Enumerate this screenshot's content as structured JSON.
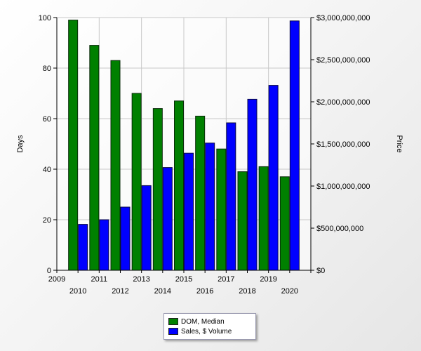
{
  "chart_data": {
    "type": "bar",
    "x_axis": {
      "ticks_upper": [
        "2009",
        "2011",
        "2013",
        "2015",
        "2017",
        "2019"
      ],
      "ticks_lower": [
        "2010",
        "2012",
        "2014",
        "2016",
        "2018",
        "2020"
      ]
    },
    "categories": [
      "2010",
      "2011",
      "2012",
      "2013",
      "2014",
      "2015",
      "2016",
      "2017",
      "2018",
      "2019",
      "2020"
    ],
    "ylabel_left": "Days",
    "ylabel_right": "Price",
    "ylim_left": [
      0,
      100
    ],
    "ylim_right": [
      0,
      3000000000
    ],
    "yticks_left": [
      "0",
      "20",
      "40",
      "60",
      "80",
      "100"
    ],
    "yticks_right": [
      "$0",
      "$500,000,000",
      "$1,000,000,000",
      "$1,500,000,000",
      "$2,000,000,000",
      "$2,500,000,000",
      "$3,000,000,000"
    ],
    "grid": true,
    "legend_position": "bottom-center",
    "series": [
      {
        "name": "DOM, Median",
        "axis": "left",
        "color": "#008000",
        "values": [
          99,
          89,
          83,
          70,
          64,
          67,
          61,
          48,
          39,
          41,
          37
        ]
      },
      {
        "name": "Sales, $ Volume",
        "axis": "right",
        "color": "#0000ff",
        "values": [
          545000000,
          600000000,
          750000000,
          1005000000,
          1220000000,
          1390000000,
          1510000000,
          1750000000,
          2030000000,
          2195000000,
          2960000000
        ]
      }
    ]
  }
}
